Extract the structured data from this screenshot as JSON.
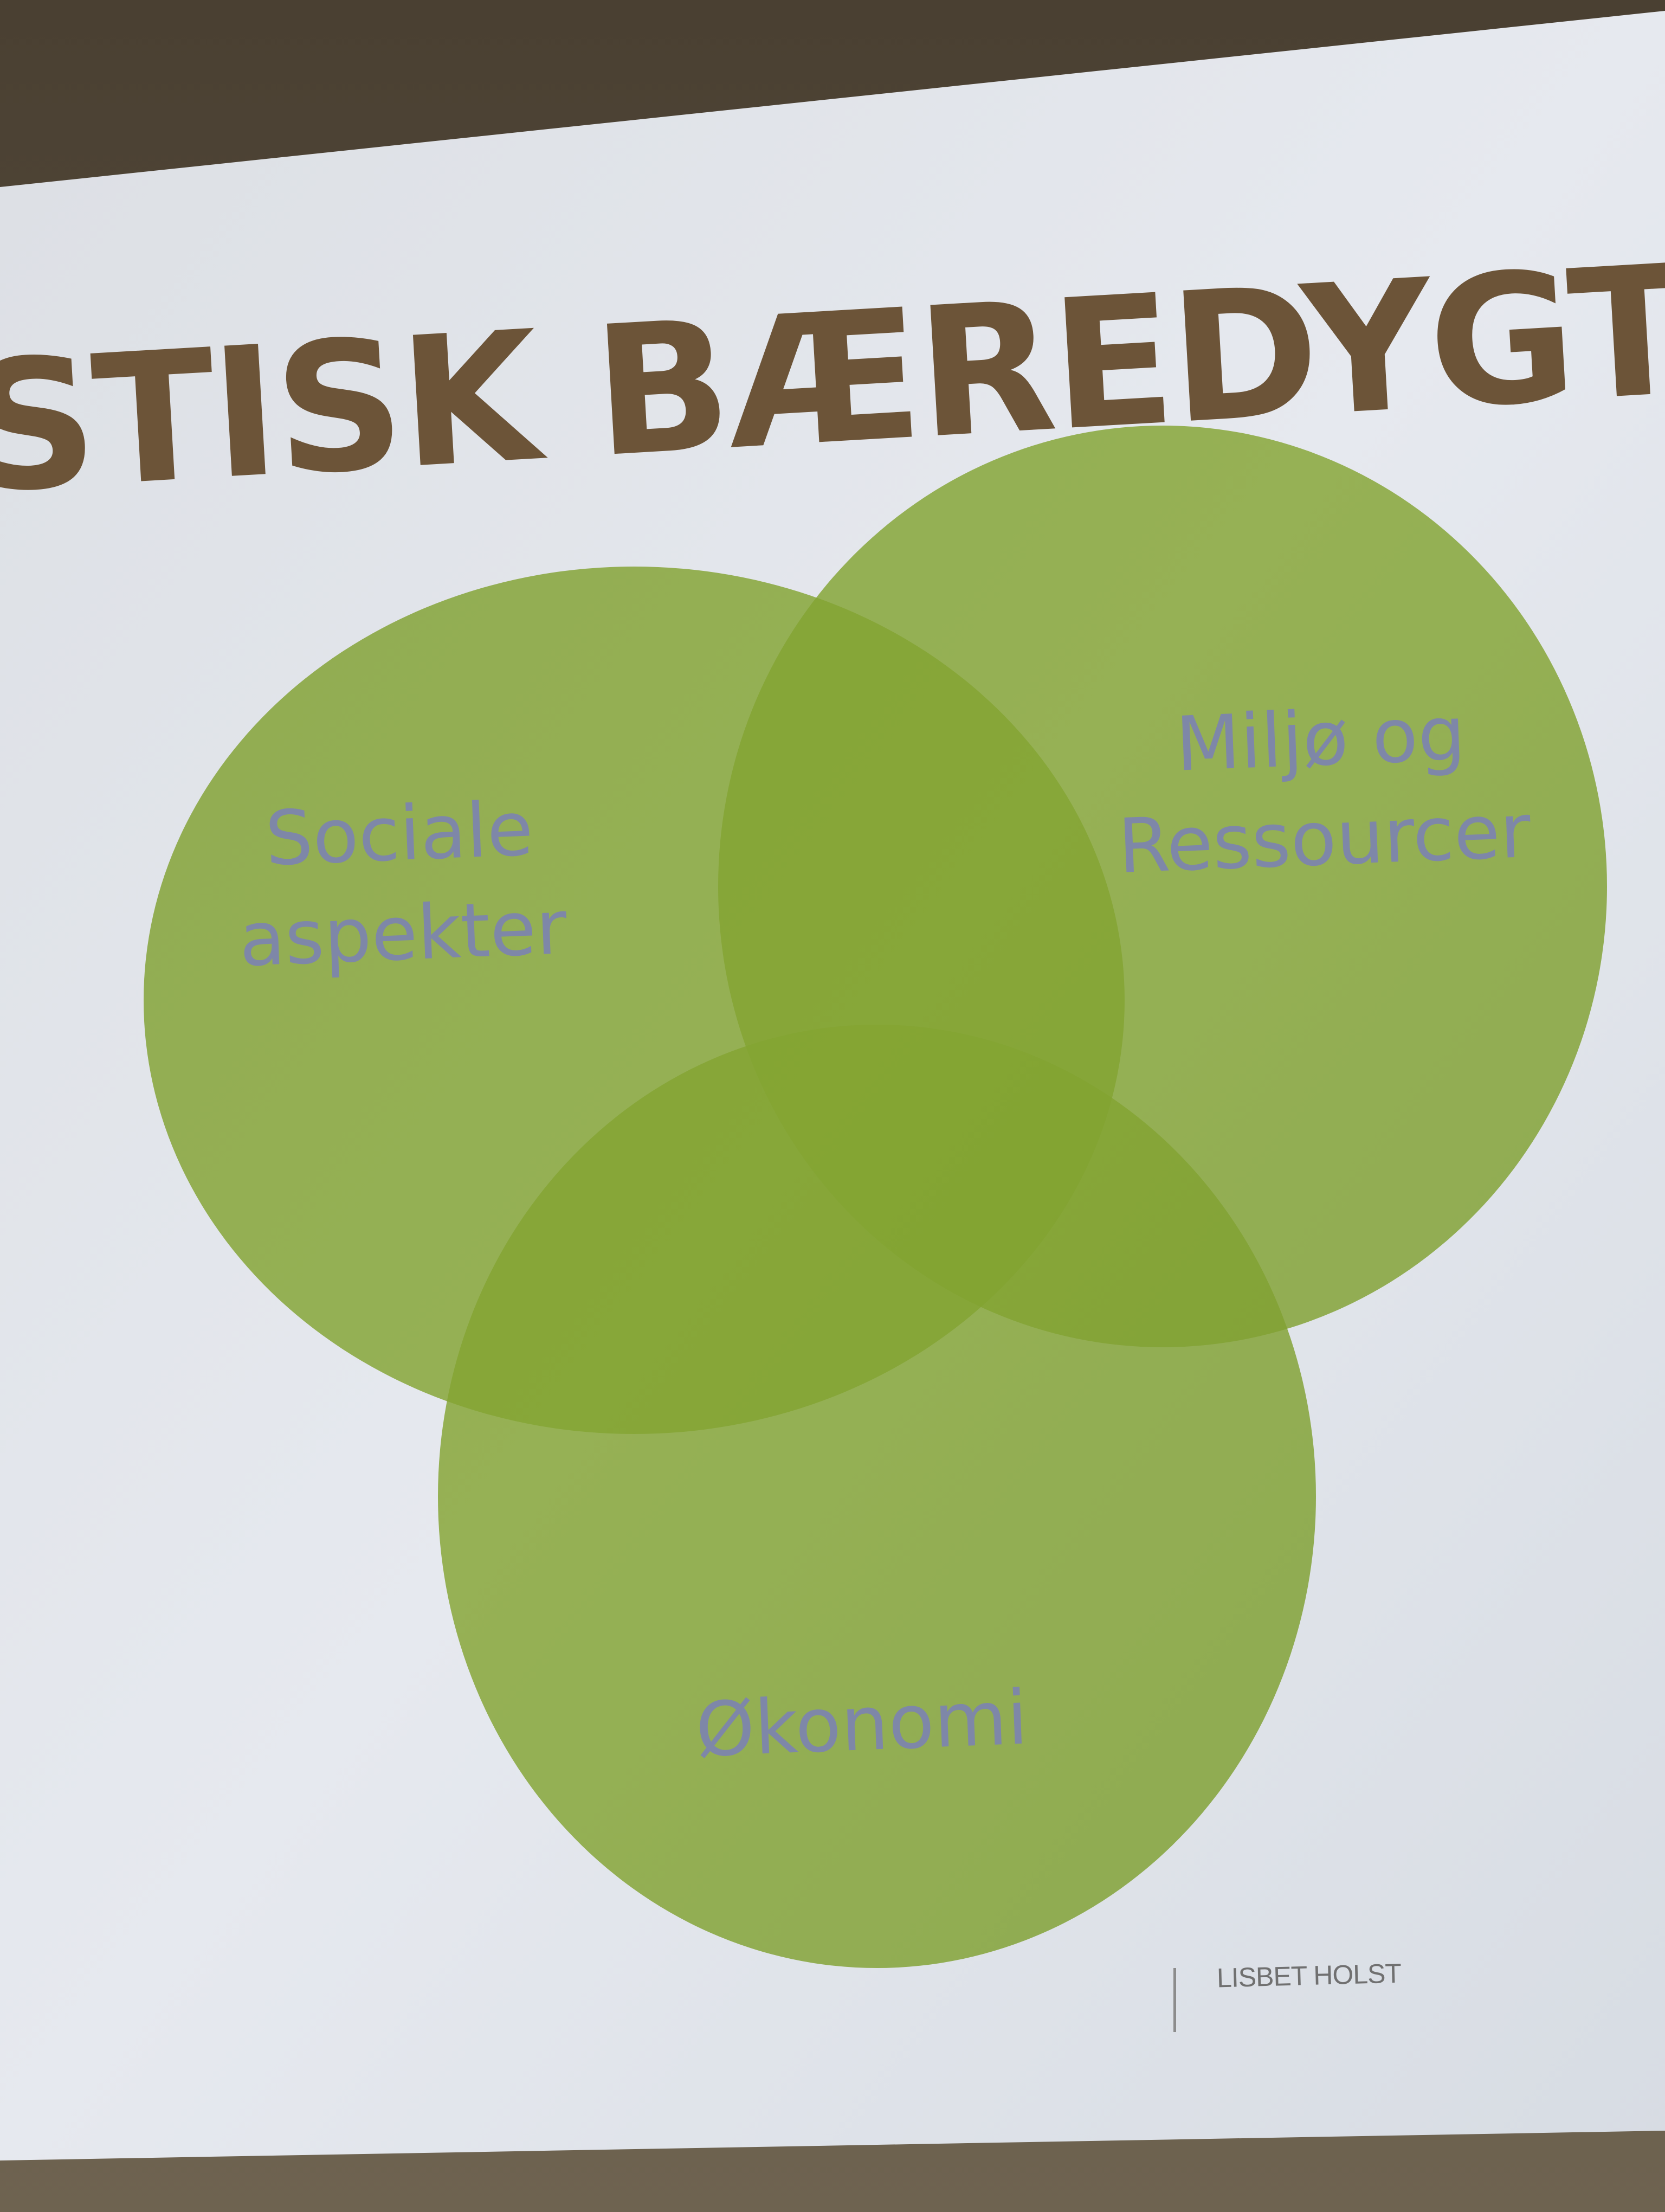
{
  "slide": {
    "title": "STISK BÆREDYGTIGHED",
    "footer": "LISBET HOLST"
  },
  "venn": {
    "sets": [
      {
        "label_line1": "Sociale",
        "label_line2": "aspekter"
      },
      {
        "label_line1": "Miljø og",
        "label_line2": "Ressourcer"
      },
      {
        "label_line1": "Økonomi",
        "label_line2": ""
      }
    ],
    "circle_color": "#92b536",
    "overlap_color": "#7da21b"
  },
  "colors": {
    "title": "#6c5438",
    "label": "#7e87a8",
    "screen": "#dfe3ea",
    "wall": "#5f5646"
  }
}
